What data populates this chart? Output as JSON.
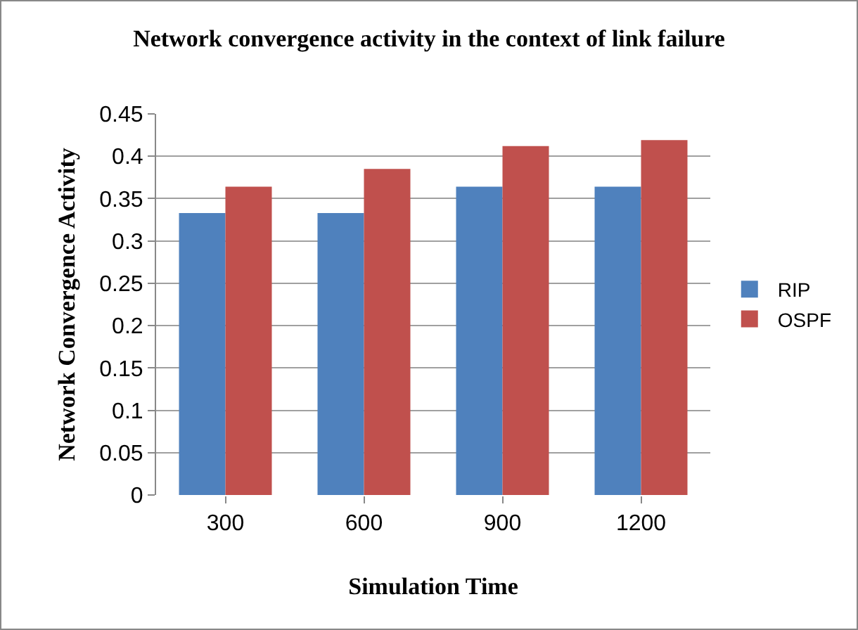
{
  "chart_data": {
    "type": "bar",
    "title": "Network convergence activity in the context of link failure",
    "xlabel": "Simulation Time",
    "ylabel": "Network Convergence Activity",
    "categories": [
      "300",
      "600",
      "900",
      "1200"
    ],
    "series": [
      {
        "name": "RIP",
        "color": "#4f81bd",
        "values": [
          0.333,
          0.333,
          0.364,
          0.364
        ]
      },
      {
        "name": "OSPF",
        "color": "#c0504d",
        "values": [
          0.364,
          0.385,
          0.412,
          0.419
        ]
      }
    ],
    "ylim": [
      0,
      0.45
    ],
    "yticks": [
      0,
      {
        "value": 0.05,
        "label": "0.05"
      },
      {
        "value": 0.1,
        "label": "0.1"
      },
      {
        "value": 0.15,
        "label": "0.15"
      },
      {
        "value": 0.2,
        "label": "0.2"
      },
      {
        "value": 0.25,
        "label": "0.25"
      },
      {
        "value": 0.3,
        "label": "0.3"
      },
      {
        "value": 0.35,
        "label": "0.35"
      },
      {
        "value": 0.4,
        "label": "0.4"
      },
      {
        "value": 0.45,
        "label": "0.45"
      }
    ],
    "grid": "y",
    "legend": "right"
  }
}
